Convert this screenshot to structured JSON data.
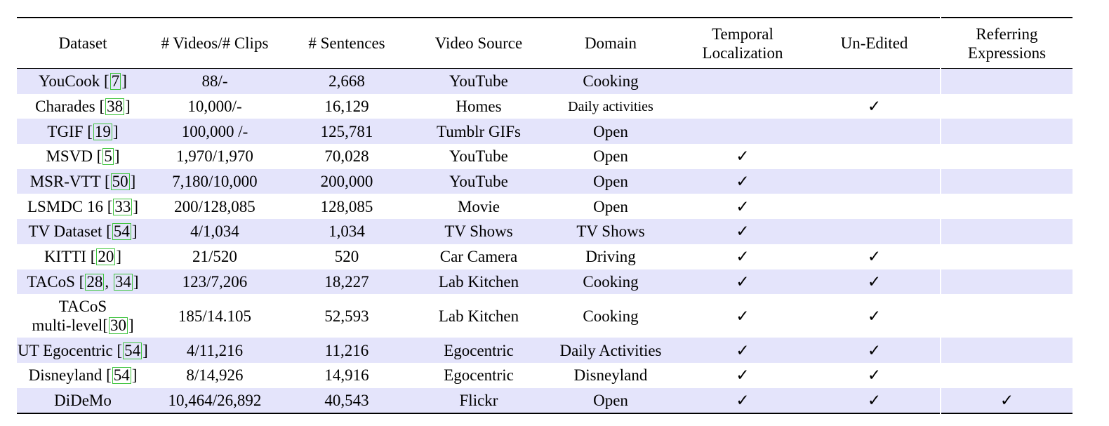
{
  "table": {
    "headers": [
      "Dataset",
      "# Videos/# Clips",
      "# Sentences",
      "Video Source",
      "Domain",
      "Temporal Localization",
      "Un-Edited",
      "Referring Expressions"
    ],
    "header_lines": [
      [
        "Dataset"
      ],
      [
        "# Videos/# Clips"
      ],
      [
        "# Sentences"
      ],
      [
        "Video Source"
      ],
      [
        "Domain"
      ],
      [
        "Temporal",
        "Localization"
      ],
      [
        "Un-Edited"
      ],
      [
        "Referring",
        "Expressions"
      ]
    ],
    "check_mark": "✓",
    "rows": [
      {
        "name": "YouCook [",
        "cites": [
          "7"
        ],
        "name_end": "]",
        "clips": "88/-",
        "sentences": "2,668",
        "source": "YouTube",
        "domain": "Cooking",
        "temporal": false,
        "unedited": false,
        "referring": false
      },
      {
        "name": "Charades [",
        "cites": [
          "38"
        ],
        "name_end": "]",
        "clips": "10,000/-",
        "sentences": "16,129",
        "source": "Homes",
        "domain": "Daily activities",
        "domain_small": true,
        "temporal": false,
        "unedited": true,
        "referring": false
      },
      {
        "name": "TGIF [",
        "cites": [
          "19"
        ],
        "name_end": "]",
        "clips": "100,000 /-",
        "sentences": "125,781",
        "source": "Tumblr GIFs",
        "domain": "Open",
        "temporal": false,
        "unedited": false,
        "referring": false
      },
      {
        "name": "MSVD [",
        "cites": [
          "5"
        ],
        "name_end": "]",
        "clips": "1,970/1,970",
        "sentences": "70,028",
        "source": "YouTube",
        "domain": "Open",
        "temporal": true,
        "unedited": false,
        "referring": false
      },
      {
        "name": "MSR-VTT [",
        "cites": [
          "50"
        ],
        "name_end": "]",
        "clips": "7,180/10,000",
        "sentences": "200,000",
        "source": "YouTube",
        "domain": "Open",
        "temporal": true,
        "unedited": false,
        "referring": false
      },
      {
        "name": "LSMDC 16 [",
        "cites": [
          "33"
        ],
        "name_end": "]",
        "clips": "200/128,085",
        "sentences": "128,085",
        "source": "Movie",
        "domain": "Open",
        "temporal": true,
        "unedited": false,
        "referring": false
      },
      {
        "name": "TV Dataset [",
        "cites": [
          "54"
        ],
        "name_end": "]",
        "clips": "4/1,034",
        "sentences": "1,034",
        "source": "TV Shows",
        "domain": "TV Shows",
        "temporal": true,
        "unedited": false,
        "referring": false
      },
      {
        "name": "KITTI [",
        "cites": [
          "20"
        ],
        "name_end": "]",
        "clips": "21/520",
        "sentences": "520",
        "source": "Car Camera",
        "domain": "Driving",
        "temporal": true,
        "unedited": true,
        "referring": false
      },
      {
        "name": "TACoS [",
        "cites": [
          "28",
          "34"
        ],
        "name_end": "]",
        "clips": "123/7,206",
        "sentences": "18,227",
        "source": "Lab Kitchen",
        "domain": "Cooking",
        "temporal": true,
        "unedited": true,
        "referring": false
      },
      {
        "name_line1": "TACoS",
        "name": "multi-level[",
        "cites": [
          "30"
        ],
        "name_end": "]",
        "clips": "185/14.105",
        "sentences": "52,593",
        "source": "Lab Kitchen",
        "domain": "Cooking",
        "temporal": true,
        "unedited": true,
        "referring": false
      },
      {
        "name": "UT Egocentric [",
        "cites": [
          "54"
        ],
        "name_end": "]",
        "clips": "4/11,216",
        "sentences": "11,216",
        "source": "Egocentric",
        "domain": "Daily Activities",
        "temporal": true,
        "unedited": true,
        "referring": false
      },
      {
        "name": "Disneyland [",
        "cites": [
          "54"
        ],
        "name_end": "]",
        "clips": "8/14,926",
        "sentences": "14,916",
        "source": "Egocentric",
        "domain": "Disneyland",
        "temporal": true,
        "unedited": true,
        "referring": false
      },
      {
        "name": "DiDeMo",
        "cites": [],
        "name_end": "",
        "clips": "10,464/26,892",
        "sentences": "40,543",
        "source": "Flickr",
        "domain": "Open",
        "temporal": true,
        "unedited": true,
        "referring": true
      }
    ]
  },
  "colors": {
    "row_shade": "#e4e4fb",
    "cite_box": "#3ec43e",
    "rule": "#000000"
  }
}
